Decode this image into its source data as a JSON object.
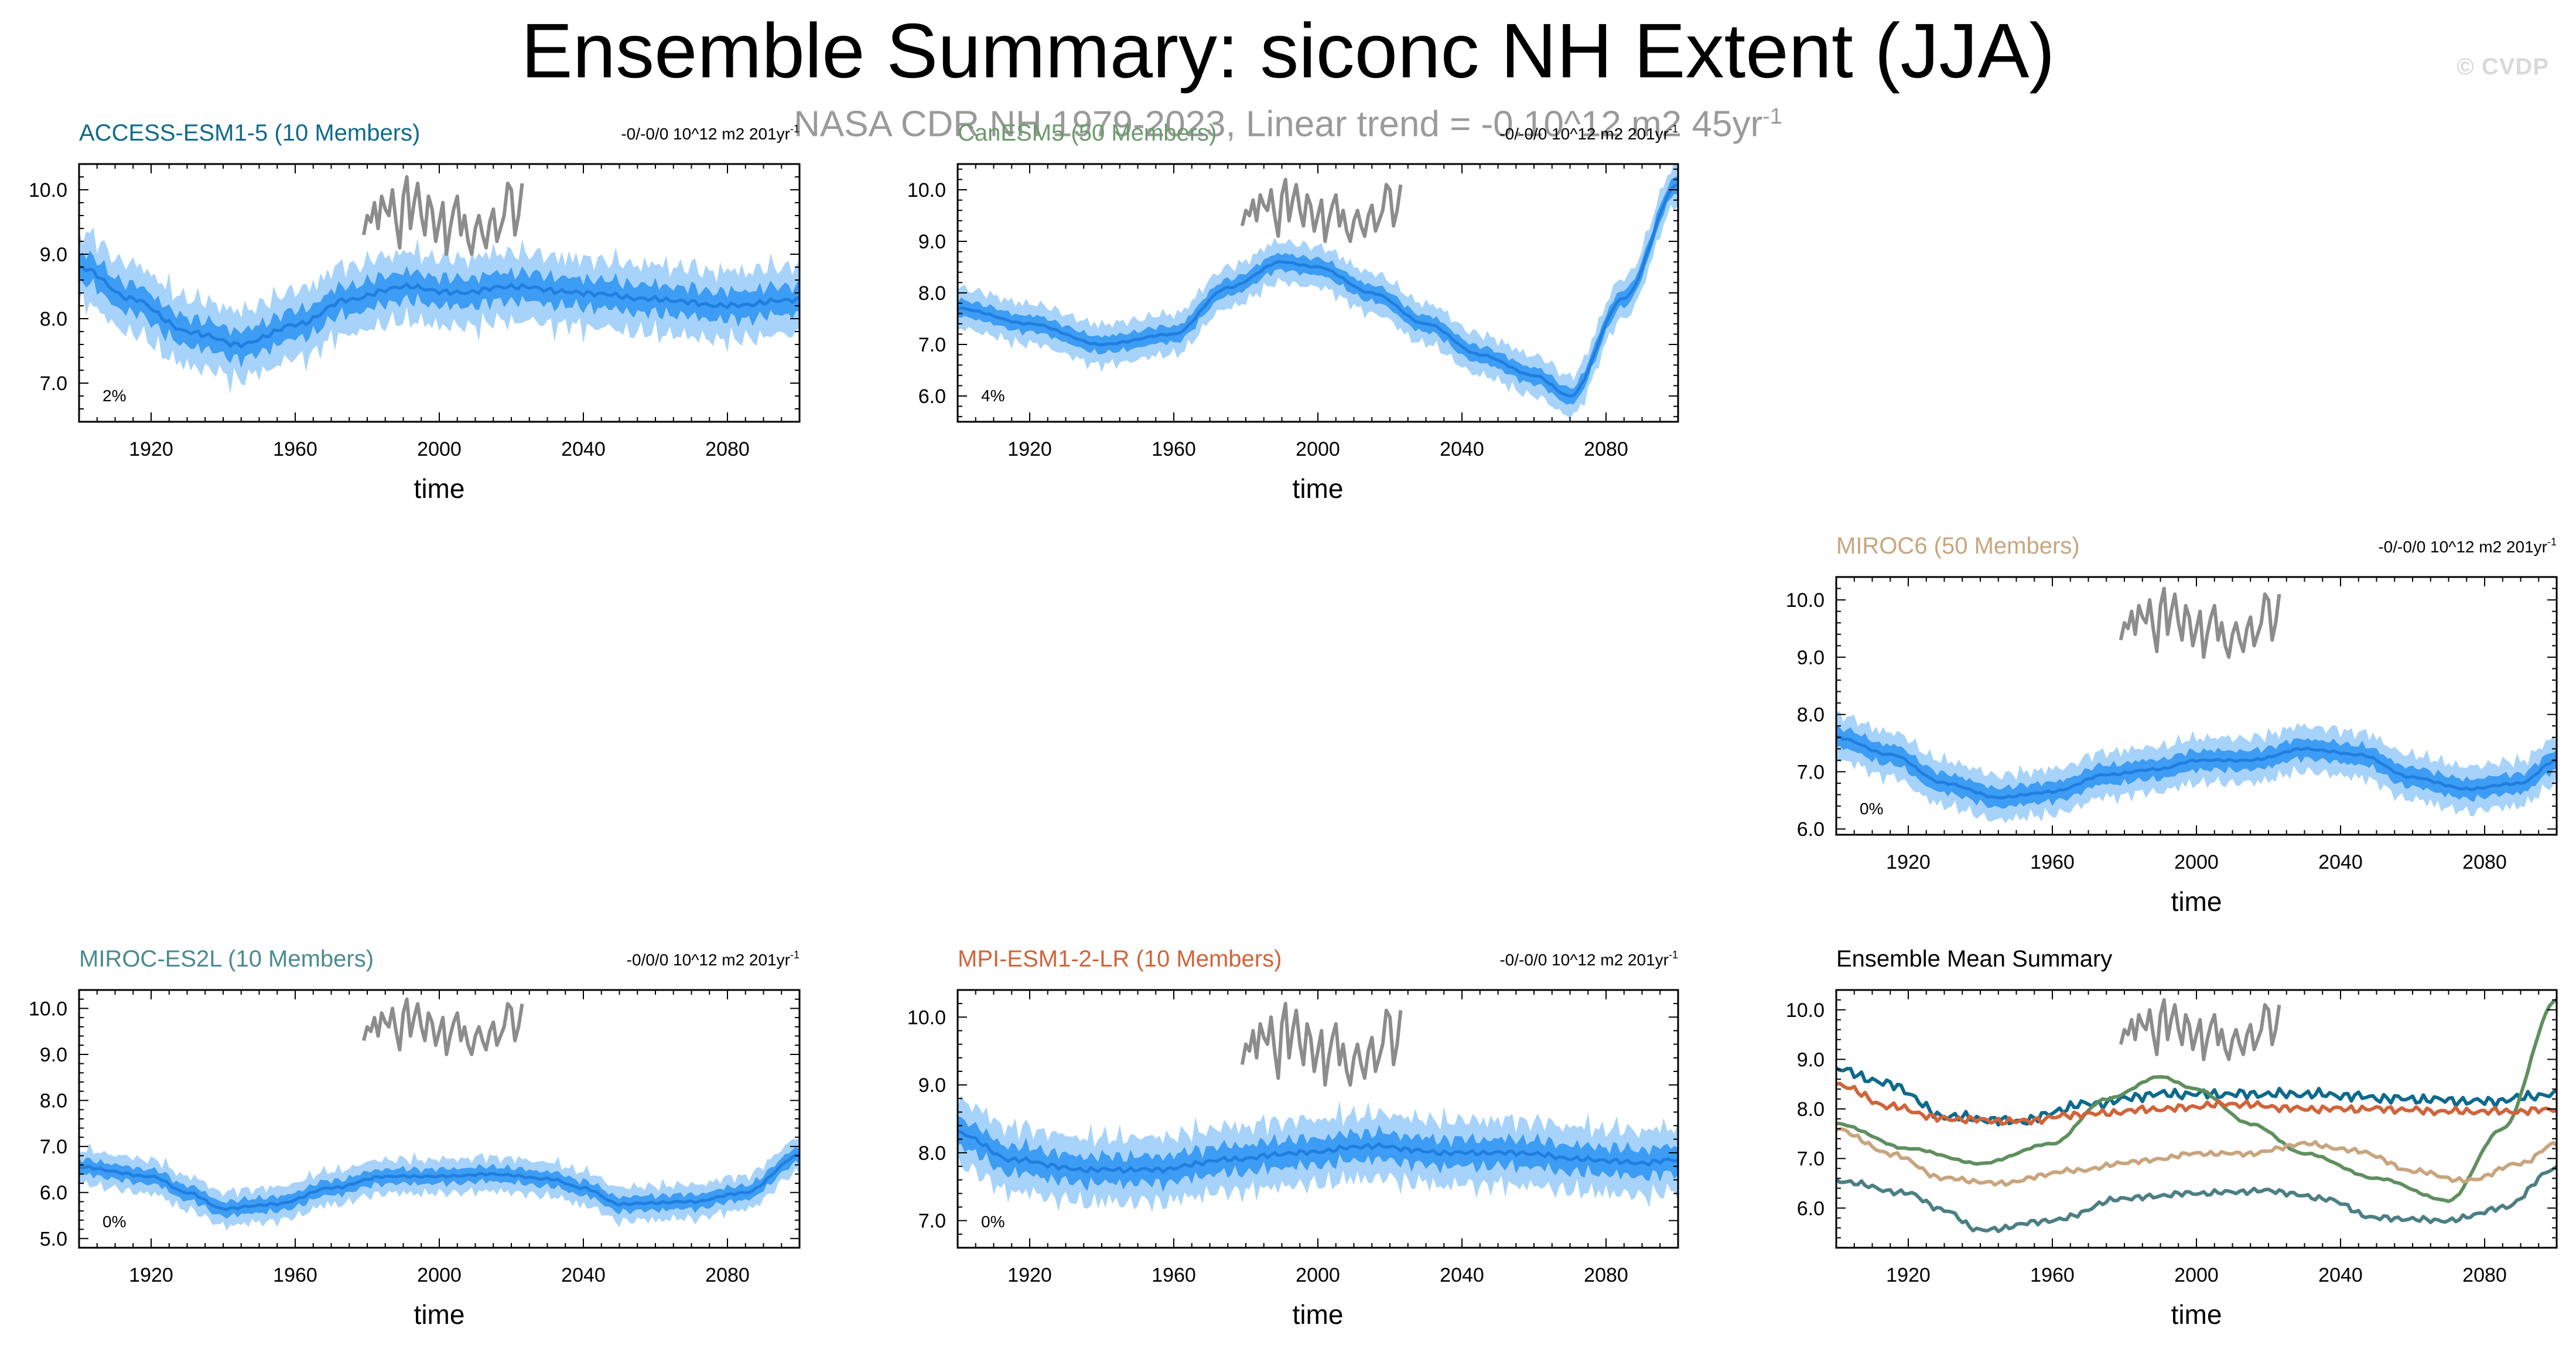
{
  "title": "Ensemble Summary: siconc NH Extent (JJA)",
  "subtitle": {
    "text": "NASA CDR NH 1979-2023, Linear trend = -0.10^12 m2 45yr",
    "sup": "-1"
  },
  "watermark": "© CVDP",
  "colors": {
    "obs": "#8c8c8c",
    "fill_outer": "#a7d3fb",
    "fill_inner": "#3d9cf3",
    "mean_line": "#1f7fe0",
    "access": "#0e6a8b",
    "canesm": "#6b9a6b",
    "miroc6": "#c8a57e",
    "mirocesl": "#4b8a90",
    "mpi": "#d0643a",
    "black": "#000000"
  },
  "chart_data": [
    {
      "id": "access",
      "type": "line",
      "title": "ACCESS-ESM1-5 (10 Members)",
      "title_color": "#0e6a8b",
      "trend_text": "-0/-0/0 10^12 m2 201yr",
      "trend_sup": "-1",
      "percent_label": "2%",
      "xlabel": "time",
      "ylabel": "",
      "xlim": [
        1900,
        2100
      ],
      "ylim": [
        6.4,
        10.4
      ],
      "xticks": [
        1920,
        1960,
        2000,
        2040,
        2080
      ],
      "yticks": [
        7.0,
        8.0,
        9.0,
        10.0
      ],
      "ytick_labels": [
        "7.0",
        "8.0",
        "9.0",
        "10.0"
      ],
      "mean_anchors": [
        [
          1900,
          8.8
        ],
        [
          1915,
          8.3
        ],
        [
          1930,
          7.8
        ],
        [
          1945,
          7.6
        ],
        [
          1960,
          7.9
        ],
        [
          1975,
          8.3
        ],
        [
          1990,
          8.5
        ],
        [
          2005,
          8.4
        ],
        [
          2020,
          8.5
        ],
        [
          2040,
          8.4
        ],
        [
          2060,
          8.3
        ],
        [
          2080,
          8.2
        ],
        [
          2100,
          8.3
        ]
      ],
      "spread_outer": 0.5,
      "spread_inner": 0.22,
      "noise_amp": 0.2,
      "obs_start": 1979,
      "obs_end": 2023,
      "obs_values": [
        9.3,
        9.6,
        9.5,
        9.8,
        9.4,
        9.9,
        9.7,
        9.6,
        10.0,
        9.5,
        9.1,
        9.9,
        10.2,
        9.4,
        9.8,
        10.1,
        9.6,
        9.3,
        9.9,
        9.7,
        9.2,
        9.5,
        9.8,
        9.0,
        9.4,
        9.7,
        9.9,
        9.3,
        9.6,
        9.2,
        9.0,
        9.4,
        9.6,
        9.3,
        9.1,
        9.5,
        9.7,
        9.2,
        9.4,
        9.6,
        10.1,
        10.0,
        9.3,
        9.6,
        10.1
      ]
    },
    {
      "id": "canesm",
      "type": "line",
      "title": "CanESM5 (50 Members)",
      "title_color": "#6b9a6b",
      "trend_text": "-0/-0/0 10^12 m2 201yr",
      "trend_sup": "-1",
      "percent_label": "4%",
      "xlabel": "time",
      "ylabel": "",
      "xlim": [
        1900,
        2100
      ],
      "ylim": [
        5.5,
        10.5
      ],
      "xticks": [
        1920,
        1960,
        2000,
        2040,
        2080
      ],
      "yticks": [
        6.0,
        7.0,
        8.0,
        9.0,
        10.0
      ],
      "ytick_labels": [
        "6.0",
        "7.0",
        "8.0",
        "9.0",
        "10.0"
      ],
      "mean_anchors": [
        [
          1900,
          7.7
        ],
        [
          1920,
          7.4
        ],
        [
          1940,
          7.0
        ],
        [
          1960,
          7.2
        ],
        [
          1975,
          8.1
        ],
        [
          1990,
          8.6
        ],
        [
          2000,
          8.5
        ],
        [
          2015,
          8.0
        ],
        [
          2030,
          7.4
        ],
        [
          2045,
          6.8
        ],
        [
          2060,
          6.4
        ],
        [
          2070,
          6.0
        ],
        [
          2085,
          7.9
        ],
        [
          2100,
          10.1
        ]
      ],
      "spread_outer": 0.38,
      "spread_inner": 0.16,
      "noise_amp": 0.08,
      "obs_start": 1979,
      "obs_end": 2023,
      "obs_values": [
        9.3,
        9.6,
        9.5,
        9.8,
        9.4,
        9.9,
        9.7,
        9.6,
        10.0,
        9.5,
        9.1,
        9.9,
        10.2,
        9.4,
        9.8,
        10.1,
        9.6,
        9.3,
        9.9,
        9.7,
        9.2,
        9.5,
        9.8,
        9.0,
        9.4,
        9.7,
        9.9,
        9.3,
        9.6,
        9.2,
        9.0,
        9.4,
        9.6,
        9.3,
        9.1,
        9.5,
        9.7,
        9.2,
        9.4,
        9.6,
        10.1,
        10.0,
        9.3,
        9.6,
        10.1
      ]
    },
    {
      "id": "miroc6",
      "type": "line",
      "title": "MIROC6 (50 Members)",
      "title_color": "#c8a57e",
      "trend_text": "-0/-0/0 10^12 m2 201yr",
      "trend_sup": "-1",
      "percent_label": "0%",
      "xlabel": "time",
      "ylabel": "",
      "xlim": [
        1900,
        2100
      ],
      "ylim": [
        5.9,
        10.4
      ],
      "xticks": [
        1920,
        1960,
        2000,
        2040,
        2080
      ],
      "yticks": [
        6.0,
        7.0,
        8.0,
        9.0,
        10.0
      ],
      "ytick_labels": [
        "6.0",
        "7.0",
        "8.0",
        "9.0",
        "10.0"
      ],
      "mean_anchors": [
        [
          1900,
          7.6
        ],
        [
          1915,
          7.3
        ],
        [
          1930,
          6.8
        ],
        [
          1945,
          6.55
        ],
        [
          1960,
          6.65
        ],
        [
          1975,
          6.95
        ],
        [
          1990,
          7.05
        ],
        [
          2000,
          7.2
        ],
        [
          2015,
          7.2
        ],
        [
          2030,
          7.4
        ],
        [
          2045,
          7.3
        ],
        [
          2060,
          6.9
        ],
        [
          2075,
          6.7
        ],
        [
          2090,
          6.8
        ],
        [
          2100,
          7.2
        ]
      ],
      "spread_outer": 0.38,
      "spread_inner": 0.17,
      "noise_amp": 0.09,
      "obs_start": 1979,
      "obs_end": 2023,
      "obs_values": [
        9.3,
        9.6,
        9.5,
        9.8,
        9.4,
        9.9,
        9.7,
        9.6,
        10.0,
        9.5,
        9.1,
        9.9,
        10.2,
        9.4,
        9.8,
        10.1,
        9.6,
        9.3,
        9.9,
        9.7,
        9.2,
        9.5,
        9.8,
        9.0,
        9.4,
        9.7,
        9.9,
        9.3,
        9.6,
        9.2,
        9.0,
        9.4,
        9.6,
        9.3,
        9.1,
        9.5,
        9.7,
        9.2,
        9.4,
        9.6,
        10.1,
        10.0,
        9.3,
        9.6,
        10.1
      ]
    },
    {
      "id": "mirocesl",
      "type": "line",
      "title": "MIROC-ES2L (10 Members)",
      "title_color": "#4b8a90",
      "trend_text": "-0/0/0 10^12 m2 201yr",
      "trend_sup": "-1",
      "percent_label": "0%",
      "xlabel": "time",
      "ylabel": "",
      "xlim": [
        1900,
        2100
      ],
      "ylim": [
        4.8,
        10.4
      ],
      "xticks": [
        1920,
        1960,
        2000,
        2040,
        2080
      ],
      "yticks": [
        5.0,
        6.0,
        7.0,
        8.0,
        9.0,
        10.0
      ],
      "ytick_labels": [
        "5.0",
        "6.0",
        "7.0",
        "8.0",
        "9.0",
        "10.0"
      ],
      "mean_anchors": [
        [
          1900,
          6.55
        ],
        [
          1920,
          6.35
        ],
        [
          1930,
          6.0
        ],
        [
          1940,
          5.65
        ],
        [
          1955,
          5.75
        ],
        [
          1970,
          6.1
        ],
        [
          1985,
          6.35
        ],
        [
          2000,
          6.35
        ],
        [
          2015,
          6.4
        ],
        [
          2030,
          6.3
        ],
        [
          2040,
          6.1
        ],
        [
          2050,
          5.75
        ],
        [
          2070,
          5.8
        ],
        [
          2085,
          6.0
        ],
        [
          2100,
          6.8
        ]
      ],
      "spread_outer": 0.35,
      "spread_inner": 0.16,
      "noise_amp": 0.12,
      "obs_start": 1979,
      "obs_end": 2023,
      "obs_values": [
        9.3,
        9.6,
        9.5,
        9.8,
        9.4,
        9.9,
        9.7,
        9.6,
        10.0,
        9.5,
        9.1,
        9.9,
        10.2,
        9.4,
        9.8,
        10.1,
        9.6,
        9.3,
        9.9,
        9.7,
        9.2,
        9.5,
        9.8,
        9.0,
        9.4,
        9.7,
        9.9,
        9.3,
        9.6,
        9.2,
        9.0,
        9.4,
        9.6,
        9.3,
        9.1,
        9.5,
        9.7,
        9.2,
        9.4,
        9.6,
        10.1,
        10.0,
        9.3,
        9.6,
        10.1
      ]
    },
    {
      "id": "mpi",
      "type": "line",
      "title": "MPI-ESM1-2-LR (10 Members)",
      "title_color": "#d0643a",
      "trend_text": "-0/-0/0 10^12 m2 201yr",
      "trend_sup": "-1",
      "percent_label": "0%",
      "xlabel": "time",
      "ylabel": "",
      "xlim": [
        1900,
        2100
      ],
      "ylim": [
        6.6,
        10.4
      ],
      "xticks": [
        1920,
        1960,
        2000,
        2040,
        2080
      ],
      "yticks": [
        7.0,
        8.0,
        9.0,
        10.0
      ],
      "ytick_labels": [
        "7.0",
        "8.0",
        "9.0",
        "10.0"
      ],
      "mean_anchors": [
        [
          1900,
          8.3
        ],
        [
          1915,
          7.9
        ],
        [
          1935,
          7.75
        ],
        [
          1955,
          7.75
        ],
        [
          1975,
          7.9
        ],
        [
          1995,
          8.0
        ],
        [
          2015,
          8.1
        ],
        [
          2035,
          8.0
        ],
        [
          2055,
          8.0
        ],
        [
          2075,
          7.9
        ],
        [
          2090,
          7.85
        ],
        [
          2100,
          7.9
        ]
      ],
      "spread_outer": 0.45,
      "spread_inner": 0.2,
      "noise_amp": 0.18,
      "obs_start": 1979,
      "obs_end": 2023,
      "obs_values": [
        9.3,
        9.6,
        9.5,
        9.8,
        9.4,
        9.9,
        9.7,
        9.6,
        10.0,
        9.5,
        9.1,
        9.9,
        10.2,
        9.4,
        9.8,
        10.1,
        9.6,
        9.3,
        9.9,
        9.7,
        9.2,
        9.5,
        9.8,
        9.0,
        9.4,
        9.7,
        9.9,
        9.3,
        9.6,
        9.2,
        9.0,
        9.4,
        9.6,
        9.3,
        9.1,
        9.5,
        9.7,
        9.2,
        9.4,
        9.6,
        10.1,
        10.0,
        9.3,
        9.6,
        10.1
      ]
    },
    {
      "id": "summary",
      "type": "line",
      "title": "Ensemble Mean Summary",
      "title_color": "#000000",
      "xlabel": "time",
      "ylabel": "",
      "xlim": [
        1900,
        2100
      ],
      "ylim": [
        5.2,
        10.4
      ],
      "xticks": [
        1920,
        1960,
        2000,
        2040,
        2080
      ],
      "yticks": [
        6.0,
        7.0,
        8.0,
        9.0,
        10.0
      ],
      "ytick_labels": [
        "6.0",
        "7.0",
        "8.0",
        "9.0",
        "10.0"
      ],
      "obs_start": 1979,
      "obs_end": 2023,
      "obs_values": [
        9.3,
        9.6,
        9.5,
        9.8,
        9.4,
        9.9,
        9.7,
        9.6,
        10.0,
        9.5,
        9.1,
        9.9,
        10.2,
        9.4,
        9.8,
        10.1,
        9.6,
        9.3,
        9.9,
        9.7,
        9.2,
        9.5,
        9.8,
        9.0,
        9.4,
        9.7,
        9.9,
        9.3,
        9.6,
        9.2,
        9.0,
        9.4,
        9.6,
        9.3,
        9.1,
        9.5,
        9.7,
        9.2,
        9.4,
        9.6,
        10.1,
        10.0,
        9.3,
        9.6,
        10.1
      ],
      "series": [
        {
          "name": "ACCESS-ESM1-5",
          "color": "#0e6a8b",
          "noise_amp": 0.12,
          "anchors": [
            [
              1900,
              8.8
            ],
            [
              1915,
              8.5
            ],
            [
              1930,
              7.85
            ],
            [
              1950,
              7.75
            ],
            [
              1970,
              8.1
            ],
            [
              1990,
              8.3
            ],
            [
              2010,
              8.3
            ],
            [
              2030,
              8.3
            ],
            [
              2060,
              8.2
            ],
            [
              2080,
              8.15
            ],
            [
              2100,
              8.3
            ]
          ]
        },
        {
          "name": "CanESM5",
          "color": "#5f8f5f",
          "noise_amp": 0.02,
          "anchors": [
            [
              1900,
              7.7
            ],
            [
              1920,
              7.2
            ],
            [
              1940,
              6.9
            ],
            [
              1960,
              7.3
            ],
            [
              1975,
              8.2
            ],
            [
              1990,
              8.65
            ],
            [
              2000,
              8.4
            ],
            [
              2015,
              7.7
            ],
            [
              2030,
              7.1
            ],
            [
              2050,
              6.6
            ],
            [
              2070,
              6.15
            ],
            [
              2085,
              7.6
            ],
            [
              2100,
              10.2
            ]
          ]
        },
        {
          "name": "MIROC6",
          "color": "#c8a57e",
          "noise_amp": 0.06,
          "anchors": [
            [
              1900,
              7.6
            ],
            [
              1915,
              7.1
            ],
            [
              1930,
              6.6
            ],
            [
              1945,
              6.5
            ],
            [
              1965,
              6.75
            ],
            [
              1985,
              6.95
            ],
            [
              2000,
              7.1
            ],
            [
              2015,
              7.1
            ],
            [
              2030,
              7.3
            ],
            [
              2045,
              7.15
            ],
            [
              2060,
              6.75
            ],
            [
              2075,
              6.55
            ],
            [
              2090,
              6.9
            ],
            [
              2100,
              7.3
            ]
          ]
        },
        {
          "name": "MIROC-ES2L",
          "color": "#4b7f84",
          "noise_amp": 0.07,
          "anchors": [
            [
              1900,
              6.55
            ],
            [
              1920,
              6.3
            ],
            [
              1930,
              5.95
            ],
            [
              1940,
              5.55
            ],
            [
              1960,
              5.75
            ],
            [
              1980,
              6.2
            ],
            [
              2000,
              6.3
            ],
            [
              2020,
              6.35
            ],
            [
              2035,
              6.2
            ],
            [
              2050,
              5.8
            ],
            [
              2070,
              5.75
            ],
            [
              2085,
              6.0
            ],
            [
              2100,
              6.8
            ]
          ]
        },
        {
          "name": "MPI-ESM1-2-LR",
          "color": "#d0643a",
          "noise_amp": 0.09,
          "anchors": [
            [
              1900,
              8.5
            ],
            [
              1915,
              8.05
            ],
            [
              1930,
              7.8
            ],
            [
              1950,
              7.75
            ],
            [
              1970,
              7.9
            ],
            [
              1990,
              8.0
            ],
            [
              2010,
              8.1
            ],
            [
              2030,
              8.0
            ],
            [
              2050,
              8.0
            ],
            [
              2070,
              7.95
            ],
            [
              2090,
              7.95
            ],
            [
              2100,
              8.0
            ]
          ]
        }
      ]
    }
  ]
}
